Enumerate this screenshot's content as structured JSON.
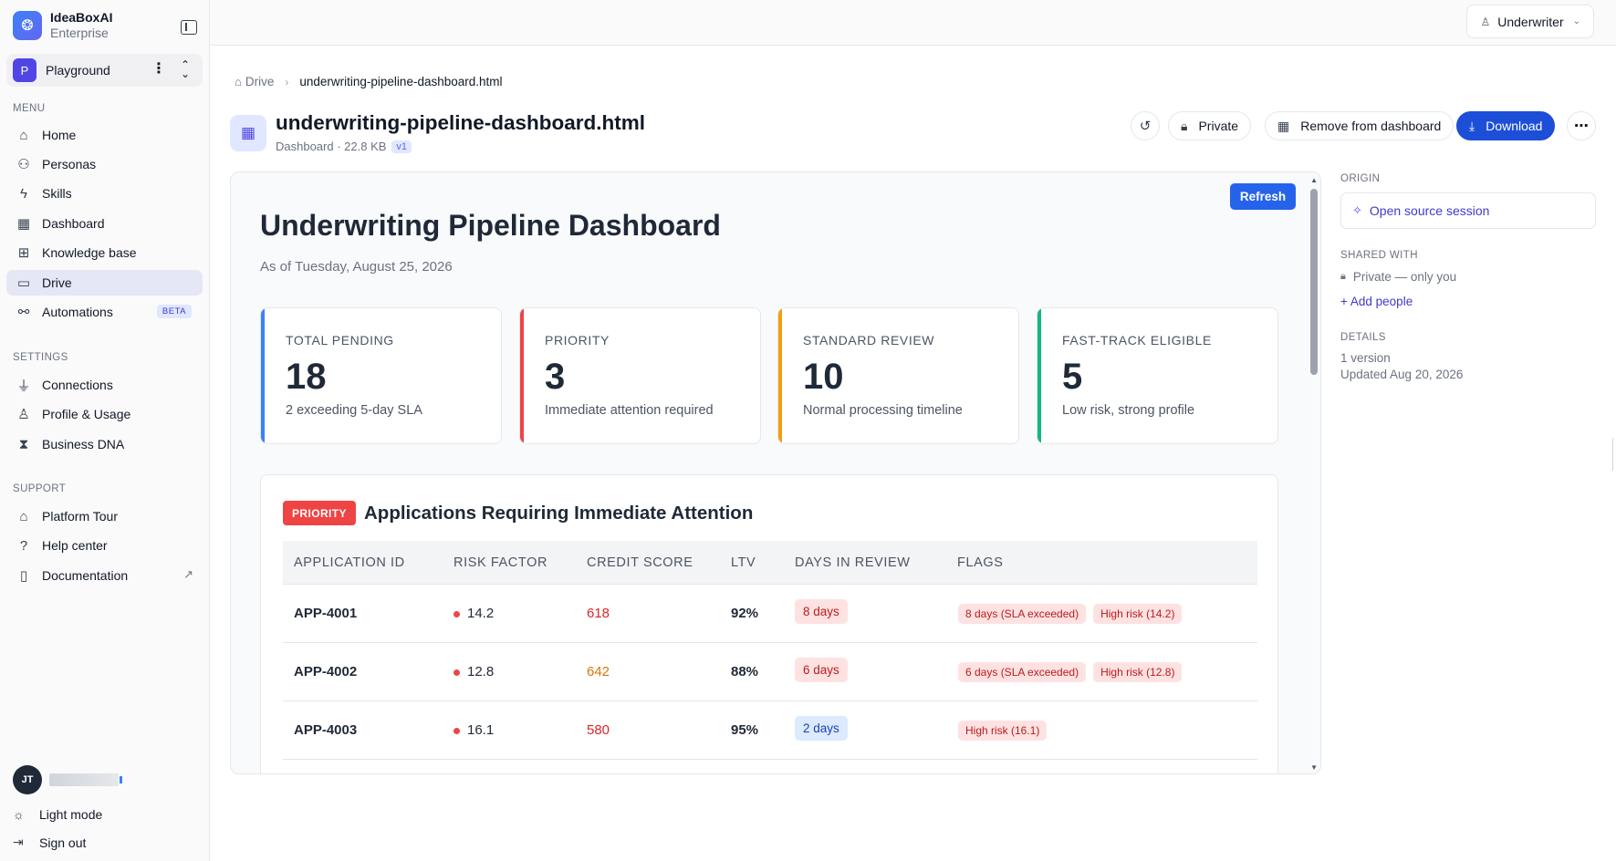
{
  "brand": {
    "name": "IdeaBoxAI",
    "tier": "Enterprise"
  },
  "workspace": {
    "initial": "P",
    "name": "Playground"
  },
  "menu": {
    "label": "MENU",
    "items": [
      {
        "label": "Home",
        "icon": "home-icon"
      },
      {
        "label": "Personas",
        "icon": "users-icon"
      },
      {
        "label": "Skills",
        "icon": "bolt-icon"
      },
      {
        "label": "Dashboard",
        "icon": "grid-icon"
      },
      {
        "label": "Knowledge base",
        "icon": "network-icon"
      },
      {
        "label": "Drive",
        "icon": "drive-icon",
        "active": true
      },
      {
        "label": "Automations",
        "icon": "automation-icon",
        "badge": "BETA"
      }
    ]
  },
  "settings": {
    "label": "SETTINGS",
    "items": [
      {
        "label": "Connections",
        "icon": "plug-icon"
      },
      {
        "label": "Profile & Usage",
        "icon": "user-icon"
      },
      {
        "label": "Business DNA",
        "icon": "dna-icon"
      }
    ]
  },
  "support": {
    "label": "SUPPORT",
    "items": [
      {
        "label": "Platform Tour",
        "icon": "graduation-icon"
      },
      {
        "label": "Help center",
        "icon": "help-icon"
      },
      {
        "label": "Documentation",
        "icon": "book-icon"
      }
    ]
  },
  "user": {
    "initials": "JT"
  },
  "footer": {
    "light_mode": "Light mode",
    "sign_out": "Sign out"
  },
  "topbar": {
    "role": "Underwriter"
  },
  "breadcrumb": {
    "root": "Drive",
    "current": "underwriting-pipeline-dashboard.html"
  },
  "file": {
    "title": "underwriting-pipeline-dashboard.html",
    "meta": "Dashboard · 22.8 KB",
    "version": "v1"
  },
  "actions": {
    "private": "Private",
    "remove": "Remove from dashboard",
    "download": "Download"
  },
  "dashboard": {
    "refresh": "Refresh",
    "title": "Underwriting Pipeline Dashboard",
    "date": "As of Tuesday, August 25, 2026",
    "cards": [
      {
        "label": "TOTAL PENDING",
        "value": "18",
        "sub": "2 exceeding 5-day SLA",
        "color": "#3b82f6"
      },
      {
        "label": "PRIORITY",
        "value": "3",
        "sub": "Immediate attention required",
        "color": "#ef4444"
      },
      {
        "label": "STANDARD REVIEW",
        "value": "10",
        "sub": "Normal processing timeline",
        "color": "#f59e0b"
      },
      {
        "label": "FAST-TRACK ELIGIBLE",
        "value": "5",
        "sub": "Low risk, strong profile",
        "color": "#10b981"
      }
    ],
    "priority_table": {
      "badge": "PRIORITY",
      "title": "Applications Requiring Immediate Attention",
      "columns": [
        "APPLICATION ID",
        "RISK FACTOR",
        "CREDIT SCORE",
        "LTV",
        "DAYS IN REVIEW",
        "FLAGS"
      ],
      "rows": [
        {
          "id": "APP-4001",
          "risk": "14.2",
          "credit": "618",
          "credit_color": "#dc2626",
          "ltv": "92%",
          "days": "8 days",
          "days_tone": "red",
          "flags": [
            "8 days (SLA exceeded)",
            "High risk (14.2)"
          ]
        },
        {
          "id": "APP-4002",
          "risk": "12.8",
          "credit": "642",
          "credit_color": "#d97706",
          "ltv": "88%",
          "days": "6 days",
          "days_tone": "red",
          "flags": [
            "6 days (SLA exceeded)",
            "High risk (12.8)"
          ]
        },
        {
          "id": "APP-4003",
          "risk": "16.1",
          "credit": "580",
          "credit_color": "#dc2626",
          "ltv": "95%",
          "days": "2 days",
          "days_tone": "blue",
          "flags": [
            "High risk (16.1)"
          ]
        }
      ]
    }
  },
  "panel": {
    "origin_label": "ORIGIN",
    "origin_link": "Open source session",
    "shared_label": "SHARED WITH",
    "shared_value": "Private — only you",
    "add_people": "+ Add people",
    "details_label": "DETAILS",
    "versions": "1 version",
    "updated": "Updated Aug 20, 2026"
  }
}
